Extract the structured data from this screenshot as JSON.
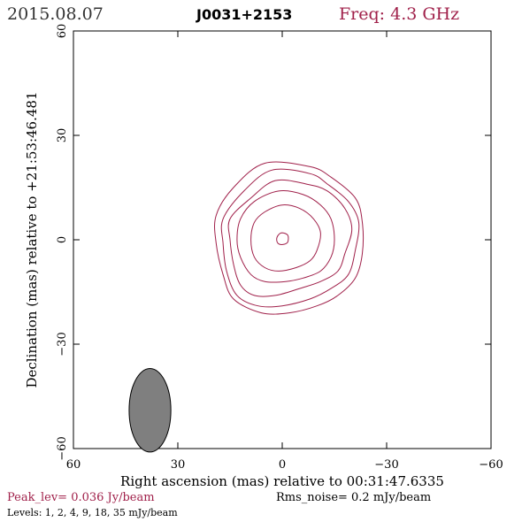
{
  "header": {
    "date": "2015.08.07",
    "source": "J0031+2153",
    "freq": "Freq: 4.3 GHz"
  },
  "footer": {
    "peak": "Peak_lev=  0.036 Jy/beam",
    "rms": "Rms_noise=  0.2 mJy/beam",
    "levels": "Levels:  1,  2,  4,  9,  18,  35 mJy/beam"
  },
  "colors": {
    "contour": "#a0204a",
    "beam": "#7f7f7f",
    "axis": "#000000"
  },
  "chart_data": {
    "type": "contour",
    "xlabel": "Right ascension (mas) relative to 00:31:47.6335",
    "ylabel": "Declination (mas) relative to +21:53:46.481",
    "xlim": [
      60,
      -60
    ],
    "ylim": [
      -60,
      60
    ],
    "xticks": [
      60,
      30,
      0,
      -30,
      -60
    ],
    "yticks": [
      -60,
      -30,
      0,
      30,
      60
    ],
    "xtick_labels": [
      "60",
      "30",
      "0",
      "−30",
      "−60"
    ],
    "ytick_labels": [
      "−60",
      "−30",
      "0",
      "30",
      "60"
    ],
    "beam": {
      "x": 38,
      "y": -49,
      "major": 12,
      "minor": 6,
      "pa_deg": 0
    },
    "levels_mJy": [
      1,
      2,
      4,
      9,
      18,
      35
    ],
    "contours": [
      [
        [
          5,
          22
        ],
        [
          -8,
          21
        ],
        [
          -14,
          18
        ],
        [
          -21,
          12
        ],
        [
          -23,
          5
        ],
        [
          -23,
          -4
        ],
        [
          -21,
          -11
        ],
        [
          -16,
          -16
        ],
        [
          -10,
          -19
        ],
        [
          -2,
          -21
        ],
        [
          6,
          -21
        ],
        [
          14,
          -17
        ],
        [
          17,
          -10
        ],
        [
          19,
          -1
        ],
        [
          19,
          7
        ],
        [
          14,
          15
        ]
      ],
      [
        [
          3,
          20
        ],
        [
          -8,
          19
        ],
        [
          -13,
          16
        ],
        [
          -19,
          11
        ],
        [
          -22,
          5
        ],
        [
          -21,
          -3
        ],
        [
          -19,
          -10
        ],
        [
          -14,
          -14
        ],
        [
          -8,
          -17
        ],
        [
          0,
          -19
        ],
        [
          7,
          -19
        ],
        [
          13,
          -16
        ],
        [
          16,
          -9
        ],
        [
          17,
          -1
        ],
        [
          17,
          6
        ],
        [
          11,
          14
        ]
      ],
      [
        [
          2,
          17
        ],
        [
          -7,
          16
        ],
        [
          -13,
          14
        ],
        [
          -18,
          9
        ],
        [
          -20,
          3
        ],
        [
          -18,
          -4
        ],
        [
          -16,
          -9
        ],
        [
          -11,
          -12
        ],
        [
          -5,
          -14
        ],
        [
          2,
          -16
        ],
        [
          8,
          -16
        ],
        [
          12,
          -13
        ],
        [
          14,
          -7
        ],
        [
          15,
          0
        ],
        [
          15,
          6
        ],
        [
          9,
          12
        ]
      ],
      [
        [
          1,
          14
        ],
        [
          -6,
          13
        ],
        [
          -11,
          10
        ],
        [
          -14,
          6
        ],
        [
          -15,
          0
        ],
        [
          -14,
          -5
        ],
        [
          -11,
          -9
        ],
        [
          -6,
          -11
        ],
        [
          -1,
          -12
        ],
        [
          5,
          -12
        ],
        [
          9,
          -10
        ],
        [
          12,
          -5
        ],
        [
          13,
          0
        ],
        [
          12,
          6
        ],
        [
          8,
          11
        ]
      ],
      [
        [
          0,
          10
        ],
        [
          -5,
          9
        ],
        [
          -9,
          6
        ],
        [
          -11,
          2
        ],
        [
          -10,
          -3
        ],
        [
          -8,
          -6
        ],
        [
          -4,
          -8
        ],
        [
          1,
          -9
        ],
        [
          5,
          -8
        ],
        [
          8,
          -5
        ],
        [
          9,
          0
        ],
        [
          8,
          5
        ],
        [
          5,
          8
        ]
      ],
      [
        [
          0,
          2
        ],
        [
          -1.6,
          1.3
        ],
        [
          -1.6,
          -0.6
        ],
        [
          -0.5,
          -1.3
        ],
        [
          1,
          -1.2
        ],
        [
          1.6,
          0
        ],
        [
          1.1,
          1.4
        ]
      ]
    ]
  }
}
